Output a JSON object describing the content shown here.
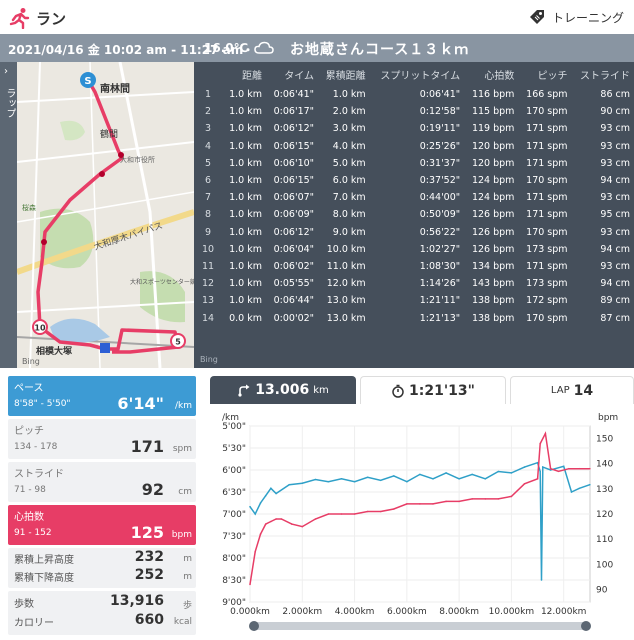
{
  "header": {
    "title": "ラン",
    "training_label": "トレーニング",
    "runner_icon": "runner-icon",
    "tag_icon": "tag-icon"
  },
  "info": {
    "datetime": "2021/04/16 金 10:02 am - 11:27 am",
    "temperature": "16.0℃",
    "separator": "・",
    "weather_icon": "cloud-icon",
    "course": "お地蔵さんコース１３ｋｍ"
  },
  "map": {
    "side_label": "ラップ",
    "labels": [
      "南林間",
      "鶴間",
      "大和市役所",
      "大和厚木バイパス",
      "大和スポーツセンター競技場",
      "相模大塚",
      "桜森",
      "Bing",
      "Bing"
    ],
    "markers": [
      "S",
      "10",
      "5"
    ],
    "colors": {
      "route": "#e73d66",
      "water": "#a6c8e8",
      "park": "#bcd9a4"
    }
  },
  "laps": {
    "headers": [
      "",
      "距離",
      "タイム",
      "累積距離",
      "スプリットタイム",
      "心拍数",
      "ピッチ",
      "ストライド"
    ],
    "rows": [
      [
        "1",
        "1.0 km",
        "0:06'41\"",
        "1.0 km",
        "0:06'41\"",
        "116 bpm",
        "166 spm",
        "86 cm"
      ],
      [
        "2",
        "1.0 km",
        "0:06'17\"",
        "2.0 km",
        "0:12'58\"",
        "115 bpm",
        "170 spm",
        "90 cm"
      ],
      [
        "3",
        "1.0 km",
        "0:06'12\"",
        "3.0 km",
        "0:19'11\"",
        "119 bpm",
        "171 spm",
        "93 cm"
      ],
      [
        "4",
        "1.0 km",
        "0:06'15\"",
        "4.0 km",
        "0:25'26\"",
        "120 bpm",
        "171 spm",
        "93 cm"
      ],
      [
        "5",
        "1.0 km",
        "0:06'10\"",
        "5.0 km",
        "0:31'37\"",
        "120 bpm",
        "171 spm",
        "93 cm"
      ],
      [
        "6",
        "1.0 km",
        "0:06'15\"",
        "6.0 km",
        "0:37'52\"",
        "124 bpm",
        "170 spm",
        "94 cm"
      ],
      [
        "7",
        "1.0 km",
        "0:06'07\"",
        "7.0 km",
        "0:44'00\"",
        "124 bpm",
        "171 spm",
        "93 cm"
      ],
      [
        "8",
        "1.0 km",
        "0:06'09\"",
        "8.0 km",
        "0:50'09\"",
        "126 bpm",
        "171 spm",
        "95 cm"
      ],
      [
        "9",
        "1.0 km",
        "0:06'12\"",
        "9.0 km",
        "0:56'22\"",
        "126 bpm",
        "170 spm",
        "93 cm"
      ],
      [
        "10",
        "1.0 km",
        "0:06'04\"",
        "10.0 km",
        "1:02'27\"",
        "126 bpm",
        "173 spm",
        "94 cm"
      ],
      [
        "11",
        "1.0 km",
        "0:06'02\"",
        "11.0 km",
        "1:08'30\"",
        "134 bpm",
        "171 spm",
        "93 cm"
      ],
      [
        "12",
        "1.0 km",
        "0:05'55\"",
        "12.0 km",
        "1:14'26\"",
        "143 bpm",
        "173 spm",
        "94 cm"
      ],
      [
        "13",
        "1.0 km",
        "0:06'44\"",
        "13.0 km",
        "1:21'11\"",
        "138 bpm",
        "172 spm",
        "89 cm"
      ],
      [
        "14",
        "0.0 km",
        "0:00'02\"",
        "13.0 km",
        "1:21'13\"",
        "138 bpm",
        "170 spm",
        "87 cm"
      ]
    ]
  },
  "stats": {
    "pace": {
      "label": "ペース",
      "range": "8'58\" - 5'50\"",
      "value": "6'14\"",
      "unit": "/km"
    },
    "pitch": {
      "label": "ピッチ",
      "range": "134 - 178",
      "value": "171",
      "unit": "spm"
    },
    "stride": {
      "label": "ストライド",
      "range": "71 - 98",
      "value": "92",
      "unit": "cm"
    },
    "heart": {
      "label": "心拍数",
      "range": "91 - 152",
      "value": "125",
      "unit": "bpm"
    },
    "ascent": {
      "label": "累積上昇高度",
      "value": "232",
      "unit": "m"
    },
    "descent": {
      "label": "累積下降高度",
      "value": "252",
      "unit": "m"
    },
    "steps": {
      "label": "歩数",
      "value": "13,916",
      "unit": "歩"
    },
    "calories": {
      "label": "カロリー",
      "value": "660",
      "unit": "kcal"
    }
  },
  "tabs": {
    "distance": {
      "value": "13.006",
      "unit": "km",
      "icon": "route-icon"
    },
    "time": {
      "value": "1:21'13\"",
      "icon": "stopwatch-icon"
    },
    "lap": {
      "label": "LAP",
      "value": "14"
    }
  },
  "chart_data": {
    "type": "line",
    "xlabel": "",
    "left_unit": "/km",
    "right_unit": "bpm",
    "x_ticks": [
      "0.000km",
      "2.000km",
      "4.000km",
      "6.000km",
      "8.000km",
      "10.000km",
      "12.000km"
    ],
    "x_range": [
      0,
      13.006
    ],
    "y_left_ticks": [
      "5'00\"",
      "5'30\"",
      "6'00\"",
      "6'30\"",
      "7'00\"",
      "7'30\"",
      "8'00\"",
      "8'30\"",
      "9'00\""
    ],
    "y_left_range_sec": [
      300,
      540
    ],
    "y_right_ticks": [
      "150",
      "140",
      "130",
      "120",
      "110",
      "100",
      "90"
    ],
    "y_right_range": [
      85,
      155
    ],
    "series": [
      {
        "key": "pace",
        "color": "#2fa0c8",
        "x": [
          0,
          0.2,
          0.4,
          0.6,
          0.8,
          1.0,
          1.5,
          2.0,
          2.5,
          3.0,
          3.5,
          4.0,
          4.5,
          5.0,
          5.5,
          6.0,
          6.5,
          7.0,
          7.5,
          8.0,
          8.5,
          9.0,
          9.5,
          10.0,
          10.5,
          11.0,
          11.1,
          11.15,
          11.2,
          11.5,
          12.0,
          12.3,
          12.6,
          13.0
        ],
        "y_sec": [
          410,
          420,
          405,
          395,
          385,
          392,
          380,
          378,
          373,
          376,
          372,
          376,
          370,
          374,
          368,
          376,
          366,
          372,
          364,
          372,
          366,
          372,
          362,
          364,
          356,
          350,
          362,
          510,
          356,
          360,
          355,
          390,
          385,
          380
        ]
      },
      {
        "key": "heart_rate",
        "color": "#e73d66",
        "x": [
          0,
          0.2,
          0.4,
          0.6,
          0.8,
          1.0,
          1.2,
          1.6,
          2.0,
          2.5,
          3.0,
          3.5,
          4.0,
          4.5,
          5.0,
          5.5,
          6.0,
          6.5,
          7.0,
          7.5,
          8.0,
          8.5,
          9.0,
          9.5,
          10.0,
          10.5,
          11.0,
          11.1,
          11.3,
          11.5,
          11.8,
          12.2,
          12.6,
          13.0
        ],
        "y": [
          92,
          105,
          112,
          116,
          117,
          118,
          118,
          116,
          115,
          118,
          120,
          120,
          120,
          121,
          121,
          122,
          124,
          124,
          124,
          125,
          125,
          126,
          126,
          126,
          127,
          132,
          134,
          148,
          152,
          138,
          137,
          138,
          138,
          138
        ]
      }
    ]
  }
}
